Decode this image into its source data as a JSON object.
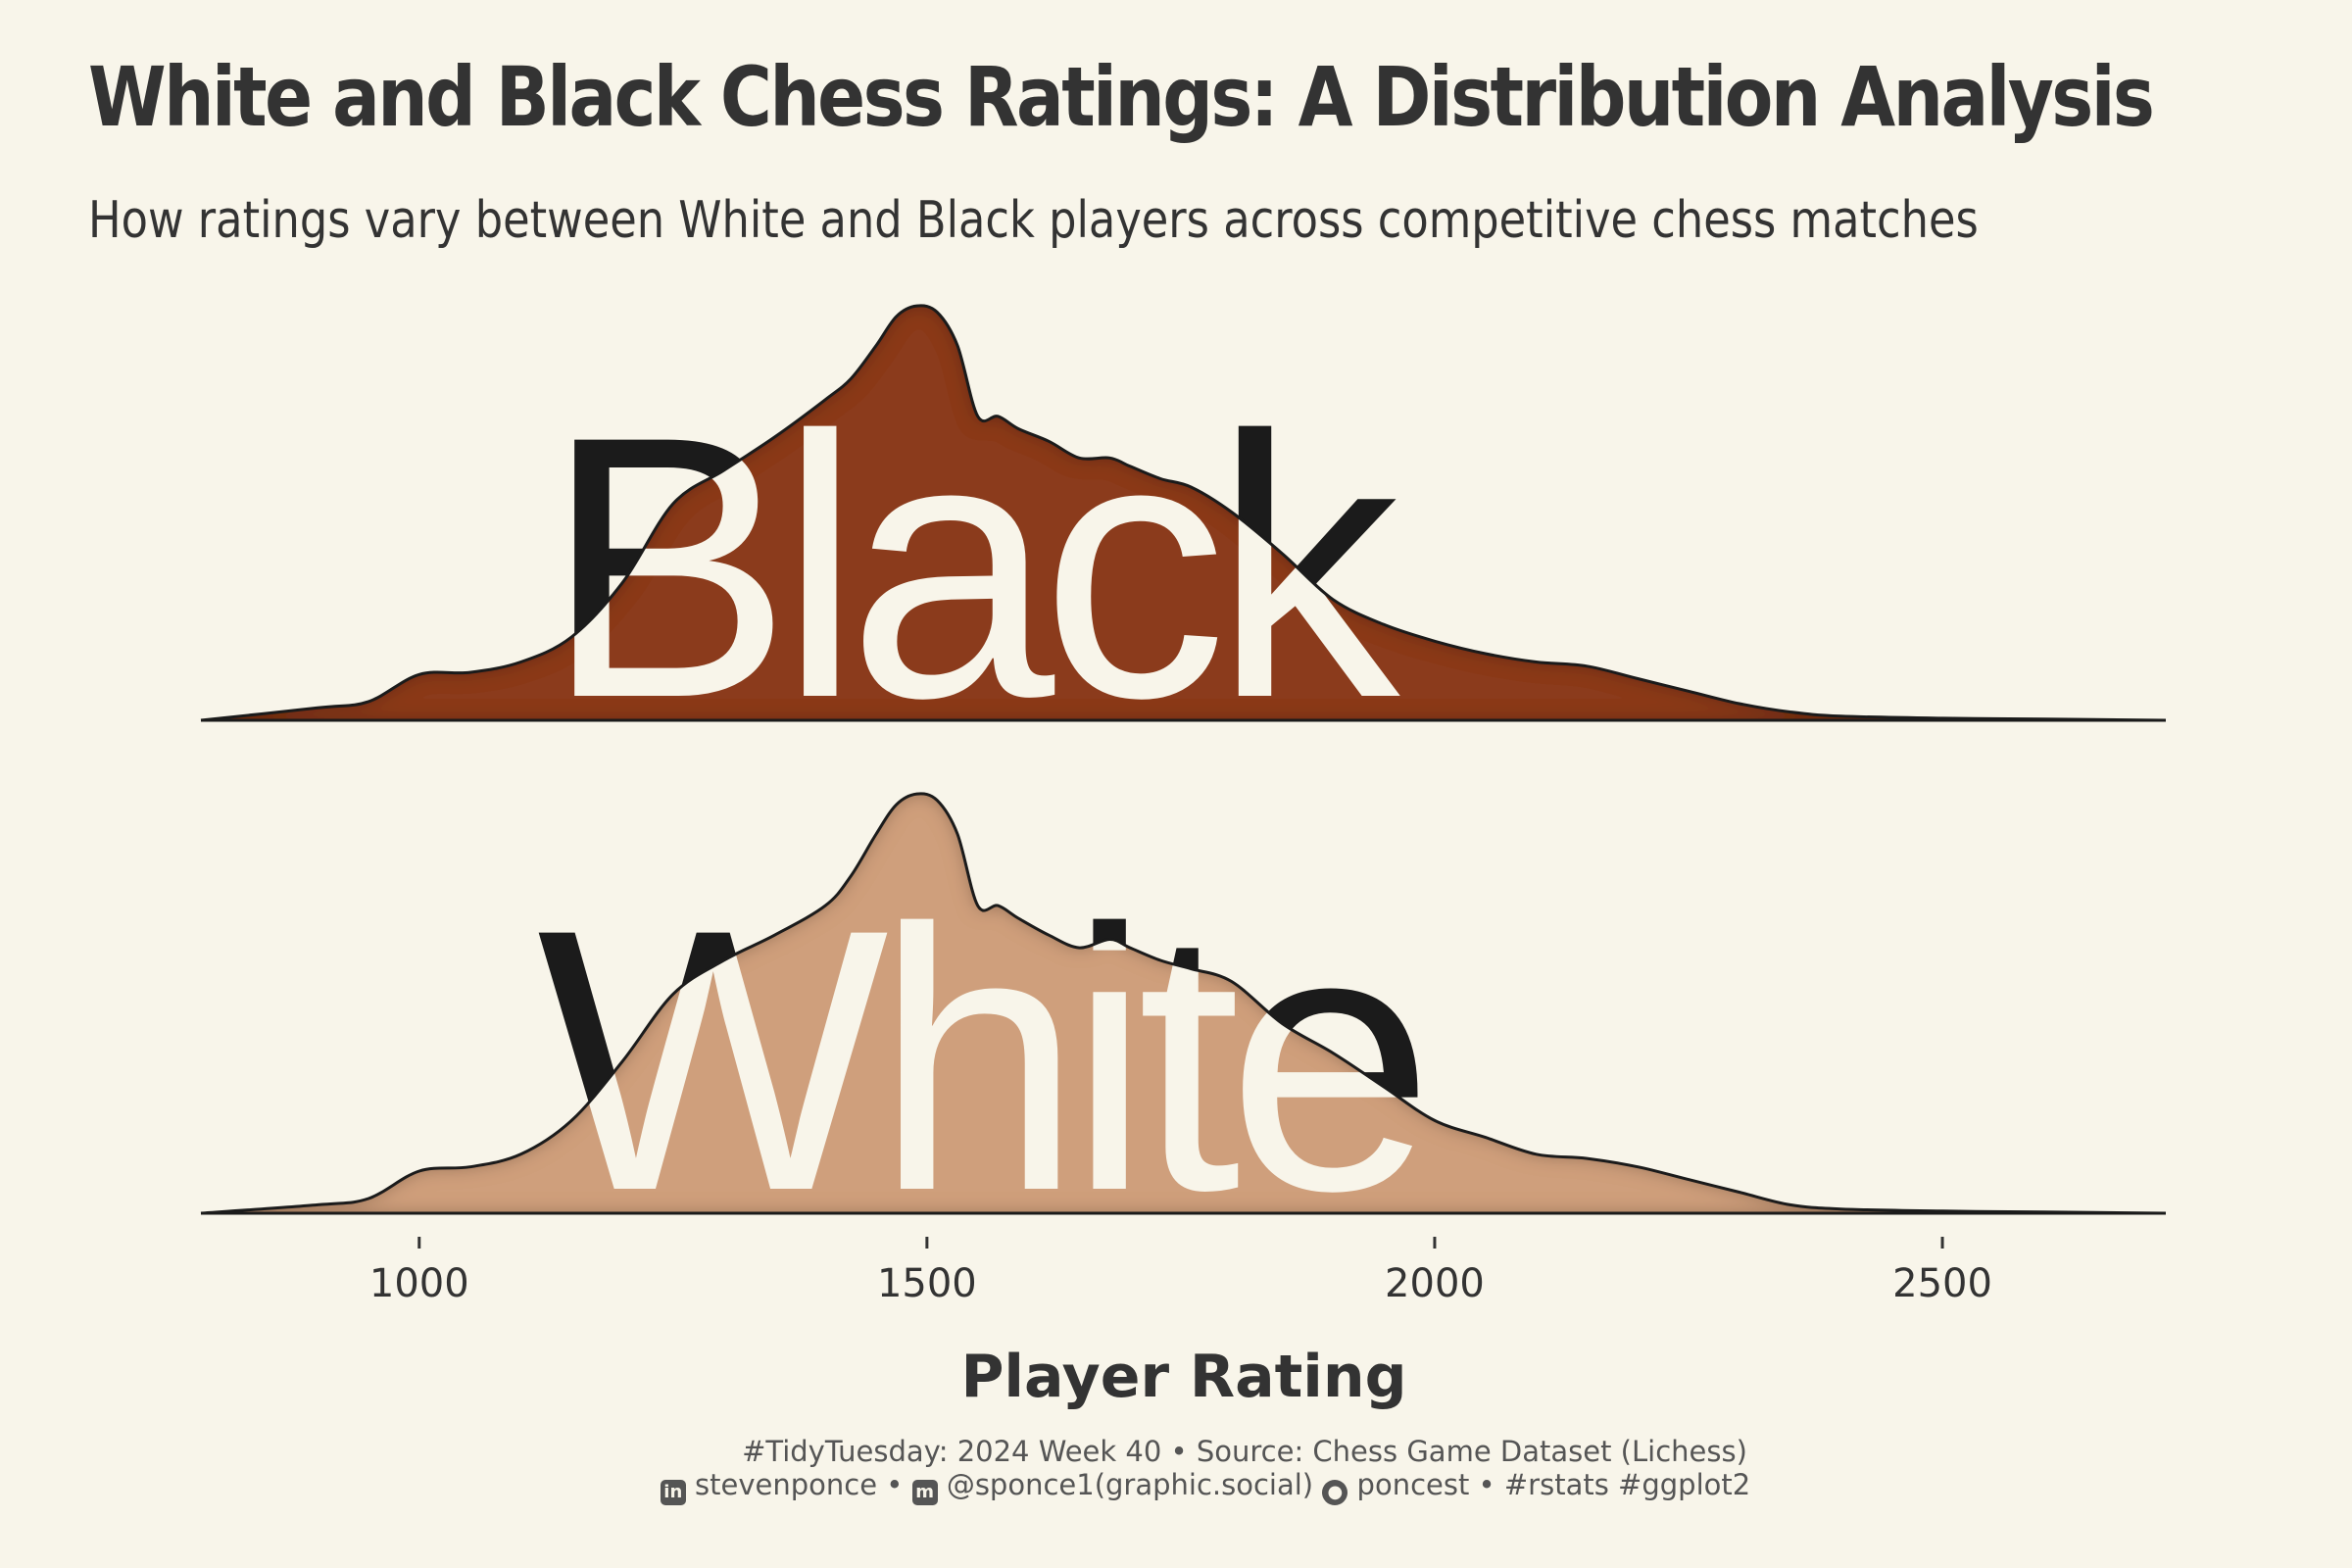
{
  "title": "White and Black Chess Ratings: A Distribution Analysis",
  "subtitle": "How ratings vary between White and Black players across competitive chess matches",
  "caption": {
    "line1": "#TidyTuesday: 2024 Week 40 • Source: Chess Game Dataset (Lichess)",
    "linkedin": "stevenponce",
    "sep1": " • ",
    "mastodon": "@sponce1(graphic.social)",
    "github": "poncest",
    "tags": " • #rstats #ggplot2"
  },
  "icons": [
    "linkedin-icon",
    "mastodon-icon",
    "github-icon"
  ],
  "chart_data": {
    "type": "area",
    "xlabel": "Player Rating",
    "xlim": [
      785,
      2720
    ],
    "xticks": [
      1000,
      1500,
      2000,
      2500
    ],
    "grid": false,
    "legend": "none",
    "series": [
      {
        "name": "Black",
        "color": "#8b3a1a",
        "points": [
          [
            785,
            0.0
          ],
          [
            900,
            0.03
          ],
          [
            950,
            0.045
          ],
          [
            1000,
            0.11
          ],
          [
            1050,
            0.115
          ],
          [
            1100,
            0.14
          ],
          [
            1150,
            0.2
          ],
          [
            1200,
            0.33
          ],
          [
            1250,
            0.52
          ],
          [
            1300,
            0.6
          ],
          [
            1350,
            0.68
          ],
          [
            1400,
            0.77
          ],
          [
            1425,
            0.82
          ],
          [
            1450,
            0.9
          ],
          [
            1470,
            0.97
          ],
          [
            1490,
            0.995
          ],
          [
            1510,
            0.98
          ],
          [
            1530,
            0.9
          ],
          [
            1550,
            0.73
          ],
          [
            1570,
            0.73
          ],
          [
            1590,
            0.7
          ],
          [
            1620,
            0.67
          ],
          [
            1650,
            0.63
          ],
          [
            1680,
            0.63
          ],
          [
            1700,
            0.61
          ],
          [
            1730,
            0.58
          ],
          [
            1760,
            0.56
          ],
          [
            1800,
            0.5
          ],
          [
            1850,
            0.4
          ],
          [
            1900,
            0.29
          ],
          [
            1950,
            0.23
          ],
          [
            2000,
            0.19
          ],
          [
            2050,
            0.16
          ],
          [
            2100,
            0.14
          ],
          [
            2150,
            0.13
          ],
          [
            2200,
            0.1
          ],
          [
            2250,
            0.07
          ],
          [
            2300,
            0.04
          ],
          [
            2350,
            0.02
          ],
          [
            2400,
            0.01
          ],
          [
            2500,
            0.005
          ],
          [
            2600,
            0.003
          ],
          [
            2720,
            0.0
          ]
        ]
      },
      {
        "name": "White",
        "color": "#cf9f7c",
        "points": [
          [
            785,
            0.0
          ],
          [
            900,
            0.02
          ],
          [
            950,
            0.035
          ],
          [
            1000,
            0.1
          ],
          [
            1050,
            0.11
          ],
          [
            1100,
            0.14
          ],
          [
            1150,
            0.22
          ],
          [
            1200,
            0.36
          ],
          [
            1250,
            0.52
          ],
          [
            1300,
            0.6
          ],
          [
            1350,
            0.66
          ],
          [
            1400,
            0.73
          ],
          [
            1425,
            0.8
          ],
          [
            1450,
            0.9
          ],
          [
            1470,
            0.97
          ],
          [
            1490,
            0.995
          ],
          [
            1510,
            0.98
          ],
          [
            1530,
            0.9
          ],
          [
            1550,
            0.73
          ],
          [
            1570,
            0.73
          ],
          [
            1590,
            0.7
          ],
          [
            1620,
            0.66
          ],
          [
            1650,
            0.63
          ],
          [
            1680,
            0.65
          ],
          [
            1700,
            0.63
          ],
          [
            1730,
            0.6
          ],
          [
            1760,
            0.58
          ],
          [
            1800,
            0.55
          ],
          [
            1850,
            0.45
          ],
          [
            1900,
            0.38
          ],
          [
            1950,
            0.3
          ],
          [
            2000,
            0.22
          ],
          [
            2050,
            0.18
          ],
          [
            2100,
            0.14
          ],
          [
            2150,
            0.13
          ],
          [
            2200,
            0.11
          ],
          [
            2250,
            0.08
          ],
          [
            2300,
            0.05
          ],
          [
            2350,
            0.02
          ],
          [
            2400,
            0.01
          ],
          [
            2500,
            0.005
          ],
          [
            2600,
            0.003
          ],
          [
            2720,
            0.0
          ]
        ]
      }
    ]
  }
}
